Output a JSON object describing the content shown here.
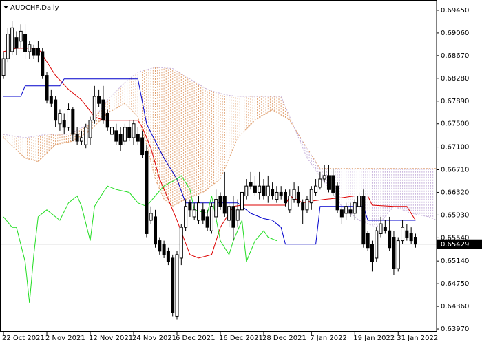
{
  "chart_data": {
    "type": "candlestick",
    "title": "AUDCHF,Daily",
    "ylim": [
      0.63935,
      0.69627
    ],
    "xlim": [
      -0.8,
      99.85
    ],
    "yticks": [
      {
        "value": 0.6945,
        "label": "0.69450"
      },
      {
        "value": 0.6906,
        "label": "0.69060"
      },
      {
        "value": 0.6867,
        "label": "0.68670"
      },
      {
        "value": 0.6828,
        "label": "0.68280"
      },
      {
        "value": 0.6789,
        "label": "0.67890"
      },
      {
        "value": 0.675,
        "label": "0.67500"
      },
      {
        "value": 0.671,
        "label": "0.67100"
      },
      {
        "value": 0.6671,
        "label": "0.66710"
      },
      {
        "value": 0.6632,
        "label": "0.66320"
      },
      {
        "value": 0.6593,
        "label": "0.65930"
      },
      {
        "value": 0.6554,
        "label": "0.65540"
      },
      {
        "value": 0.6514,
        "label": "0.65140"
      },
      {
        "value": 0.6475,
        "label": "0.64750"
      },
      {
        "value": 0.6436,
        "label": "0.64360"
      },
      {
        "value": 0.6397,
        "label": "0.63970"
      }
    ],
    "xticks": [
      {
        "value": 0,
        "label": "22 Oct 2021"
      },
      {
        "value": 10,
        "label": "2 Nov 2021"
      },
      {
        "value": 20,
        "label": "12 Nov 2021"
      },
      {
        "value": 30,
        "label": "24 Nov 2021"
      },
      {
        "value": 40,
        "label": "6 Dec 2021"
      },
      {
        "value": 50,
        "label": "16 Dec 2021"
      },
      {
        "value": 60,
        "label": "28 Dec 2021"
      },
      {
        "value": 71,
        "label": "7 Jan 2022"
      },
      {
        "value": 81,
        "label": "19 Jan 2022"
      },
      {
        "value": 91,
        "label": "31 Jan 2022"
      }
    ],
    "last_price": 0.65429,
    "up_color": "#ffffff",
    "down_color": "#000000",
    "candles": {
      "open": [
        0.6833,
        0.6862,
        0.6874,
        0.6898,
        0.6892,
        0.6904,
        0.6874,
        0.688,
        0.688,
        0.6874,
        0.6833,
        0.6797,
        0.6791,
        0.675,
        0.6756,
        0.6744,
        0.6774,
        0.6732,
        0.672,
        0.6714,
        0.6726,
        0.6756,
        0.6797,
        0.6791,
        0.6768,
        0.6732,
        0.6738,
        0.6732,
        0.672,
        0.6744,
        0.6726,
        0.6732,
        0.6726,
        0.6703,
        0.6584,
        0.659,
        0.6549,
        0.6543,
        0.6531,
        0.6519,
        0.6419,
        0.6519,
        0.6572,
        0.6614,
        0.659,
        0.6584,
        0.6602,
        0.659,
        0.6566,
        0.659,
        0.6626,
        0.6626,
        0.6584,
        0.6608,
        0.6584,
        0.6602,
        0.6626,
        0.6649,
        0.6643,
        0.6632,
        0.6643,
        0.6626,
        0.6637,
        0.662,
        0.6632,
        0.6632,
        0.6602,
        0.662,
        0.6632,
        0.6614,
        0.6602,
        0.6614,
        0.6632,
        0.6641,
        0.6655,
        0.6661,
        0.6661,
        0.6643,
        0.6602,
        0.6596,
        0.6602,
        0.6596,
        0.6608,
        0.6626,
        0.6561,
        0.6543,
        0.6519,
        0.6561,
        0.6572,
        0.6566,
        0.6555,
        0.6501,
        0.6549,
        0.6566,
        0.6561,
        0.6555
      ],
      "high": [
        0.6874,
        0.6915,
        0.6927,
        0.6909,
        0.6921,
        0.6921,
        0.6892,
        0.6886,
        0.6892,
        0.688,
        0.6839,
        0.6809,
        0.6797,
        0.6774,
        0.6768,
        0.6785,
        0.6779,
        0.6744,
        0.6738,
        0.675,
        0.6762,
        0.6815,
        0.6809,
        0.6815,
        0.6774,
        0.6756,
        0.675,
        0.6744,
        0.675,
        0.6756,
        0.6756,
        0.6744,
        0.6738,
        0.6714,
        0.6608,
        0.6602,
        0.6555,
        0.6549,
        0.6537,
        0.6525,
        0.6531,
        0.6578,
        0.662,
        0.662,
        0.6614,
        0.6626,
        0.6614,
        0.6602,
        0.6614,
        0.6637,
        0.6632,
        0.6667,
        0.6614,
        0.6626,
        0.662,
        0.6643,
        0.6655,
        0.6667,
        0.6661,
        0.6667,
        0.6655,
        0.6661,
        0.6649,
        0.6643,
        0.6643,
        0.6637,
        0.6637,
        0.6649,
        0.6643,
        0.662,
        0.6626,
        0.6643,
        0.6655,
        0.6667,
        0.6679,
        0.6679,
        0.6673,
        0.6649,
        0.6608,
        0.6614,
        0.6614,
        0.662,
        0.6632,
        0.6637,
        0.6566,
        0.6549,
        0.6572,
        0.659,
        0.6584,
        0.659,
        0.6566,
        0.6555,
        0.6584,
        0.6578,
        0.6572,
        0.6561
      ],
      "low": [
        0.6827,
        0.6856,
        0.6868,
        0.6868,
        0.688,
        0.6862,
        0.6862,
        0.6862,
        0.6856,
        0.6827,
        0.6785,
        0.6779,
        0.6744,
        0.6738,
        0.6732,
        0.6738,
        0.672,
        0.6714,
        0.6714,
        0.6708,
        0.6714,
        0.675,
        0.6779,
        0.675,
        0.6738,
        0.672,
        0.6714,
        0.6703,
        0.6714,
        0.672,
        0.6714,
        0.6714,
        0.6691,
        0.6555,
        0.6578,
        0.6537,
        0.6525,
        0.6519,
        0.6507,
        0.6419,
        0.6413,
        0.6507,
        0.6566,
        0.659,
        0.6584,
        0.6578,
        0.6578,
        0.6566,
        0.6561,
        0.6584,
        0.6602,
        0.659,
        0.6572,
        0.6549,
        0.6572,
        0.6596,
        0.662,
        0.6637,
        0.6626,
        0.662,
        0.662,
        0.6614,
        0.662,
        0.6614,
        0.662,
        0.6608,
        0.6596,
        0.6614,
        0.6608,
        0.6578,
        0.6596,
        0.6602,
        0.6626,
        0.6637,
        0.6649,
        0.6632,
        0.6626,
        0.6596,
        0.6578,
        0.6584,
        0.659,
        0.6584,
        0.6602,
        0.6537,
        0.6531,
        0.6496,
        0.6513,
        0.6555,
        0.6561,
        0.6531,
        0.649,
        0.6496,
        0.6543,
        0.6549,
        0.6543,
        0.6537
      ],
      "close": [
        0.6862,
        0.6904,
        0.6915,
        0.688,
        0.6909,
        0.6874,
        0.6886,
        0.6868,
        0.6868,
        0.6833,
        0.6791,
        0.6785,
        0.6756,
        0.6768,
        0.6744,
        0.6774,
        0.6732,
        0.672,
        0.6726,
        0.6744,
        0.6756,
        0.6797,
        0.6785,
        0.6756,
        0.6744,
        0.6744,
        0.672,
        0.6714,
        0.6744,
        0.6726,
        0.675,
        0.672,
        0.6697,
        0.6561,
        0.6596,
        0.6543,
        0.6531,
        0.6525,
        0.6513,
        0.6425,
        0.6525,
        0.6572,
        0.6608,
        0.6602,
        0.6602,
        0.6614,
        0.6584,
        0.6572,
        0.6608,
        0.662,
        0.6608,
        0.6596,
        0.6608,
        0.6572,
        0.6602,
        0.6632,
        0.6643,
        0.6643,
        0.6632,
        0.6643,
        0.6626,
        0.6643,
        0.6626,
        0.6632,
        0.6626,
        0.6614,
        0.6626,
        0.6637,
        0.6614,
        0.6602,
        0.662,
        0.6637,
        0.6643,
        0.6655,
        0.6661,
        0.6637,
        0.6632,
        0.6602,
        0.659,
        0.6608,
        0.6596,
        0.6614,
        0.6626,
        0.6543,
        0.6537,
        0.6513,
        0.6566,
        0.6578,
        0.6566,
        0.6537,
        0.6501,
        0.6549,
        0.6572,
        0.6555,
        0.6549,
        0.6543
      ]
    },
    "cloud": [
      {
        "color": "#e0a070",
        "x": [
          0,
          5,
          8,
          12,
          16,
          20,
          24,
          28,
          31,
          33,
          35,
          37,
          39,
          42,
          46,
          50,
          54,
          58,
          62,
          66,
          70,
          73,
          100
        ],
        "values": [
          0.6726,
          0.6691,
          0.6685,
          0.6714,
          0.672,
          0.6738,
          0.6768,
          0.6785,
          0.6762,
          0.6714,
          0.6655,
          0.662,
          0.6608,
          0.662,
          0.6632,
          0.6655,
          0.6726,
          0.6756,
          0.6774,
          0.6756,
          0.6708,
          0.6673,
          0.6673
        ]
      },
      {
        "color": "#c8b4dc",
        "x": [
          0,
          5,
          10,
          15,
          20,
          24,
          28,
          31,
          35,
          39,
          43,
          47,
          51,
          54,
          64,
          66,
          70,
          74,
          78,
          82,
          86,
          90,
          94,
          98,
          100
        ],
        "values": [
          0.6732,
          0.6726,
          0.6732,
          0.6732,
          0.675,
          0.6791,
          0.6821,
          0.6839,
          0.6847,
          0.6845,
          0.6827,
          0.6809,
          0.68,
          0.6797,
          0.6797,
          0.6762,
          0.6691,
          0.6649,
          0.6608,
          0.6584,
          0.6572,
          0.6608,
          0.6596,
          0.659,
          0.6584
        ]
      }
    ],
    "lines": [
      {
        "color": "#dd0000",
        "x": [
          0,
          3,
          8,
          12,
          15,
          18,
          21,
          23,
          31,
          32,
          34,
          36,
          38,
          40,
          43,
          45,
          48,
          50,
          53,
          55,
          65,
          66,
          69,
          71,
          74,
          78,
          81,
          84,
          85,
          90,
          93,
          95
        ],
        "values": [
          0.6874,
          0.688,
          0.688,
          0.6833,
          0.6809,
          0.6791,
          0.6762,
          0.6756,
          0.6756,
          0.6744,
          0.6708,
          0.6655,
          0.662,
          0.6584,
          0.6525,
          0.6519,
          0.6525,
          0.6572,
          0.6608,
          0.661,
          0.661,
          0.6626,
          0.6614,
          0.6617,
          0.662,
          0.6623,
          0.6626,
          0.6626,
          0.661,
          0.6608,
          0.6608,
          0.6584
        ]
      },
      {
        "color": "#0000cc",
        "x": [
          0,
          4,
          5,
          13,
          14,
          31,
          33,
          35,
          37,
          40,
          42,
          54,
          55,
          57,
          60,
          62,
          64,
          65,
          72,
          73,
          83,
          84,
          95
        ],
        "values": [
          0.6797,
          0.6797,
          0.6815,
          0.6815,
          0.6827,
          0.6827,
          0.675,
          0.672,
          0.6691,
          0.6655,
          0.6614,
          0.6614,
          0.6608,
          0.6596,
          0.6587,
          0.6584,
          0.6572,
          0.6543,
          0.6543,
          0.6608,
          0.6608,
          0.6584,
          0.6584
        ]
      },
      {
        "color": "#22dd22",
        "x": [
          0,
          2,
          3,
          5,
          6,
          7,
          8,
          10,
          13,
          15,
          17,
          18,
          20,
          21,
          23,
          24,
          26,
          29,
          31,
          33,
          35,
          37,
          40,
          41,
          43,
          44,
          47,
          48,
          50,
          52,
          53,
          55,
          56,
          58,
          60,
          61,
          63
        ],
        "values": [
          0.659,
          0.6572,
          0.6572,
          0.6513,
          0.6442,
          0.6525,
          0.659,
          0.6602,
          0.6584,
          0.6614,
          0.6626,
          0.6608,
          0.6549,
          0.6608,
          0.6632,
          0.6643,
          0.6637,
          0.6632,
          0.6614,
          0.6608,
          0.6626,
          0.6643,
          0.6655,
          0.6661,
          0.6637,
          0.6602,
          0.6596,
          0.6626,
          0.6549,
          0.6525,
          0.6549,
          0.6584,
          0.6513,
          0.6549,
          0.6566,
          0.6555,
          0.6549
        ]
      }
    ]
  }
}
